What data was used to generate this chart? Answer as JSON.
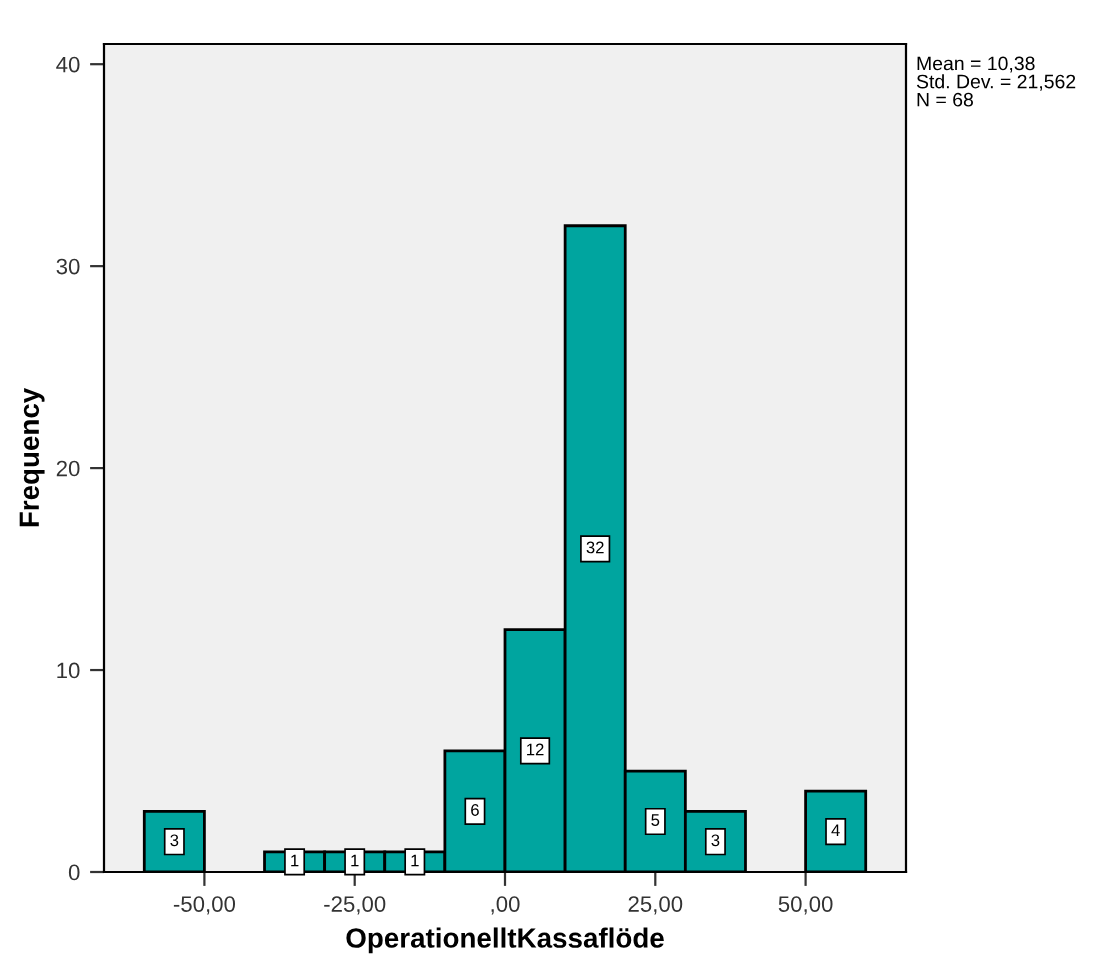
{
  "chart_data": {
    "type": "histogram",
    "xlabel": "OperationelltKassaflöde",
    "ylabel": "Frequency",
    "bins": [
      -60,
      -50,
      -40,
      -30,
      -20,
      -10,
      0,
      10,
      20,
      30,
      40,
      50,
      60
    ],
    "values": [
      3,
      0,
      1,
      1,
      1,
      6,
      12,
      32,
      5,
      3,
      0,
      4
    ],
    "value_labels": [
      "3",
      null,
      "1",
      "1",
      "1",
      "6",
      "12",
      "32",
      "5",
      "3",
      null,
      "4"
    ],
    "color": "#00a59f",
    "xlim": [
      -66.7,
      66.7
    ],
    "xticks": [
      {
        "value": -50,
        "label": "-50,00"
      },
      {
        "value": -25,
        "label": "-25,00"
      },
      {
        "value": 0,
        "label": ",00"
      },
      {
        "value": 25,
        "label": "25,00"
      },
      {
        "value": 50,
        "label": "50,00"
      }
    ],
    "ylim": [
      0,
      41
    ],
    "yticks": [
      0,
      10,
      20,
      30,
      40
    ],
    "grid": false,
    "legend": false,
    "annotations": [
      "Mean = 10,38\nStd. Dev. = 21,562\nN = 68"
    ]
  }
}
